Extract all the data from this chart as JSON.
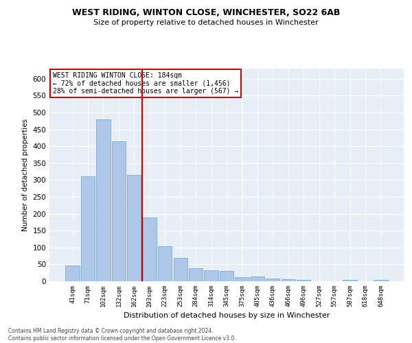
{
  "title": "WEST RIDING, WINTON CLOSE, WINCHESTER, SO22 6AB",
  "subtitle": "Size of property relative to detached houses in Winchester",
  "xlabel": "Distribution of detached houses by size in Winchester",
  "ylabel": "Number of detached properties",
  "categories": [
    "41sqm",
    "71sqm",
    "102sqm",
    "132sqm",
    "162sqm",
    "193sqm",
    "223sqm",
    "253sqm",
    "284sqm",
    "314sqm",
    "345sqm",
    "375sqm",
    "405sqm",
    "436sqm",
    "466sqm",
    "496sqm",
    "527sqm",
    "557sqm",
    "587sqm",
    "618sqm",
    "648sqm"
  ],
  "values": [
    47,
    311,
    480,
    415,
    315,
    190,
    103,
    70,
    38,
    32,
    30,
    12,
    14,
    9,
    6,
    4,
    1,
    0,
    5,
    0,
    5
  ],
  "bar_color": "#aec6e8",
  "bar_edge_color": "#7aadd4",
  "vline_x_index": 5,
  "vline_color": "#cc0000",
  "annotation_text": "WEST RIDING WINTON CLOSE: 184sqm\n← 72% of detached houses are smaller (1,456)\n28% of semi-detached houses are larger (567) →",
  "annotation_box_color": "#ffffff",
  "annotation_box_edge_color": "#cc0000",
  "ylim": [
    0,
    630
  ],
  "yticks": [
    0,
    50,
    100,
    150,
    200,
    250,
    300,
    350,
    400,
    450,
    500,
    550,
    600
  ],
  "bg_color": "#e8eef5",
  "footer_line1": "Contains HM Land Registry data © Crown copyright and database right 2024.",
  "footer_line2": "Contains public sector information licensed under the Open Government Licence v3.0."
}
